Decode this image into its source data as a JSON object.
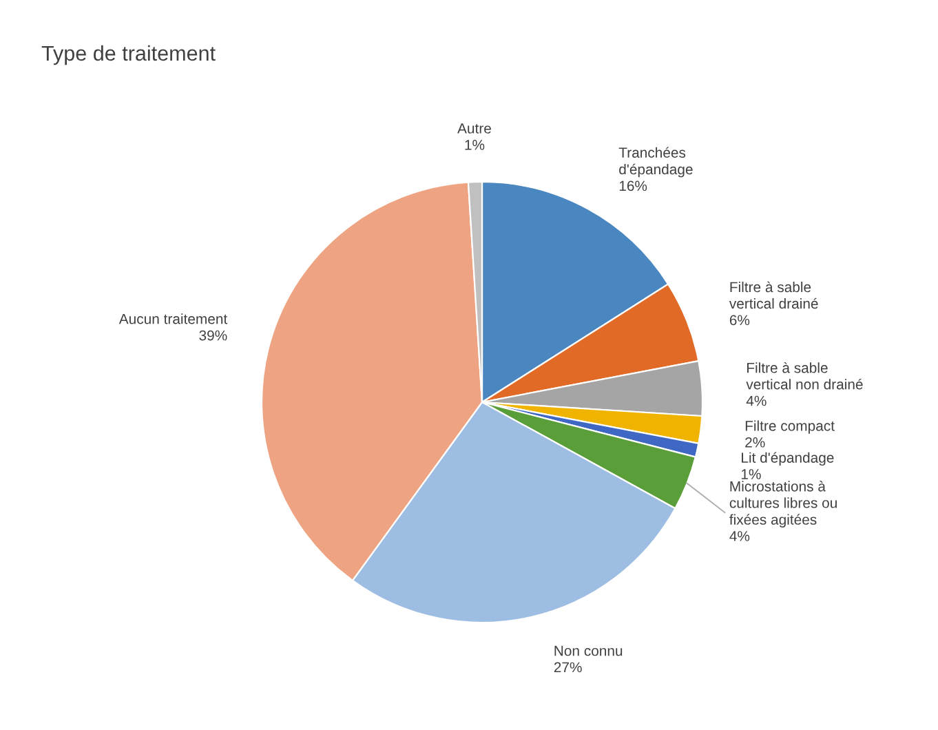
{
  "chart_data": {
    "type": "pie",
    "title": "Type de traitement",
    "categories": [
      "Tranchées\nd'épandage",
      "Filtre à sable\nvertical drainé",
      "Filtre à sable\nvertical non drainé",
      "Filtre compact",
      "Lit d'épandage",
      "Microstations à\ncultures libres ou\nfixées agitées",
      "Non connu",
      "Aucun traitement",
      "Autre"
    ],
    "values": [
      16,
      6,
      4,
      2,
      1,
      4,
      27,
      39,
      1
    ],
    "value_labels": [
      "16%",
      "6%",
      "4%",
      "2%",
      "1%",
      "4%",
      "27%",
      "39%",
      "1%"
    ],
    "colors": [
      "#4a86c0",
      "#e06a26",
      "#a5a5a5",
      "#f0b400",
      "#3f68c4",
      "#5a9e3a",
      "#9dbde3",
      "#eea482",
      "#c0c0c0"
    ]
  }
}
